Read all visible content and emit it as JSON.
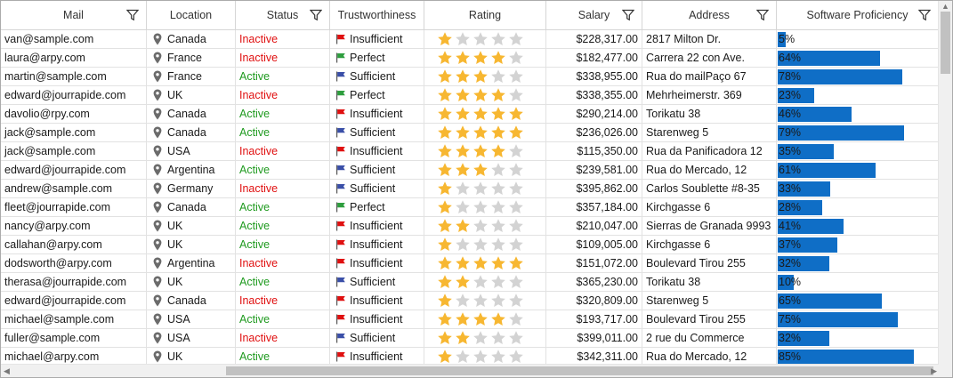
{
  "columns": [
    {
      "key": "mail",
      "label": "Mail",
      "filter": true
    },
    {
      "key": "location",
      "label": "Location",
      "filter": false
    },
    {
      "key": "status",
      "label": "Status",
      "filter": true
    },
    {
      "key": "trust",
      "label": "Trustworthiness",
      "filter": false
    },
    {
      "key": "rating",
      "label": "Rating",
      "filter": false
    },
    {
      "key": "salary",
      "label": "Salary",
      "filter": true
    },
    {
      "key": "address",
      "label": "Address",
      "filter": true
    },
    {
      "key": "proficiency",
      "label": "Software Proficiency",
      "filter": true
    }
  ],
  "colors": {
    "active": "#1f9a1f",
    "inactive": "#e01010",
    "flag_red": "#e01010",
    "flag_green": "#2e9e3e",
    "flag_blue": "#3a4fa8",
    "star_filled": "#f7b731",
    "star_empty": "#d3d3d3",
    "bar": "#0f6ec6"
  },
  "rows": [
    {
      "mail": "van@sample.com",
      "location": "Canada",
      "status": "Inactive",
      "trust": "Insufficient",
      "flag": "red",
      "rating": 1,
      "salary": "$228,317.00",
      "address": "2817 Milton Dr.",
      "prof": 5,
      "prof_label": "5%"
    },
    {
      "mail": "laura@arpy.com",
      "location": "France",
      "status": "Inactive",
      "trust": "Perfect",
      "flag": "green",
      "rating": 4,
      "salary": "$182,477.00",
      "address": "Carrera 22 con Ave.",
      "prof": 64,
      "prof_label": "64%"
    },
    {
      "mail": "martin@sample.com",
      "location": "France",
      "status": "Active",
      "trust": "Sufficient",
      "flag": "blue",
      "rating": 3,
      "salary": "$338,955.00",
      "address": "Rua do mailPaço 67",
      "prof": 78,
      "prof_label": "78%"
    },
    {
      "mail": "edward@jourrapide.com",
      "location": "UK",
      "status": "Inactive",
      "trust": "Perfect",
      "flag": "green",
      "rating": 4,
      "salary": "$338,355.00",
      "address": "Mehrheimerstr. 369",
      "prof": 23,
      "prof_label": "23%"
    },
    {
      "mail": "davolio@rpy.com",
      "location": "Canada",
      "status": "Active",
      "trust": "Insufficient",
      "flag": "red",
      "rating": 5,
      "salary": "$290,214.00",
      "address": "Torikatu 38",
      "prof": 46,
      "prof_label": "46%"
    },
    {
      "mail": "jack@sample.com",
      "location": "Canada",
      "status": "Active",
      "trust": "Sufficient",
      "flag": "blue",
      "rating": 5,
      "salary": "$236,026.00",
      "address": "Starenweg 5",
      "prof": 79,
      "prof_label": "79%"
    },
    {
      "mail": "jack@sample.com",
      "location": "USA",
      "status": "Inactive",
      "trust": "Insufficient",
      "flag": "red",
      "rating": 4,
      "salary": "$115,350.00",
      "address": "Rua da Panificadora 12",
      "prof": 35,
      "prof_label": "35%"
    },
    {
      "mail": "edward@jourrapide.com",
      "location": "Argentina",
      "status": "Active",
      "trust": "Sufficient",
      "flag": "blue",
      "rating": 3,
      "salary": "$239,581.00",
      "address": "Rua do Mercado, 12",
      "prof": 61,
      "prof_label": "61%"
    },
    {
      "mail": "andrew@sample.com",
      "location": "Germany",
      "status": "Inactive",
      "trust": "Sufficient",
      "flag": "blue",
      "rating": 1,
      "salary": "$395,862.00",
      "address": " Carlos Soublette #8-35",
      "prof": 33,
      "prof_label": "33%"
    },
    {
      "mail": "fleet@jourrapide.com",
      "location": "Canada",
      "status": "Active",
      "trust": "Perfect",
      "flag": "green",
      "rating": 1,
      "salary": "$357,184.00",
      "address": "Kirchgasse 6",
      "prof": 28,
      "prof_label": "28%"
    },
    {
      "mail": "nancy@arpy.com",
      "location": "UK",
      "status": "Active",
      "trust": "Insufficient",
      "flag": "red",
      "rating": 2,
      "salary": "$210,047.00",
      "address": "Sierras de Granada 9993",
      "prof": 41,
      "prof_label": "41%"
    },
    {
      "mail": "callahan@arpy.com",
      "location": "UK",
      "status": "Active",
      "trust": "Insufficient",
      "flag": "red",
      "rating": 1,
      "salary": "$109,005.00",
      "address": "Kirchgasse 6",
      "prof": 37,
      "prof_label": "37%"
    },
    {
      "mail": "dodsworth@arpy.com",
      "location": "Argentina",
      "status": "Inactive",
      "trust": "Insufficient",
      "flag": "red",
      "rating": 5,
      "salary": "$151,072.00",
      "address": "Boulevard Tirou 255",
      "prof": 32,
      "prof_label": "32%"
    },
    {
      "mail": "therasa@jourrapide.com",
      "location": "UK",
      "status": "Active",
      "trust": "Sufficient",
      "flag": "blue",
      "rating": 2,
      "salary": "$365,230.00",
      "address": "Torikatu 38",
      "prof": 10,
      "prof_label": "10%"
    },
    {
      "mail": "edward@jourrapide.com",
      "location": "Canada",
      "status": "Inactive",
      "trust": "Insufficient",
      "flag": "red",
      "rating": 1,
      "salary": "$320,809.00",
      "address": "Starenweg 5",
      "prof": 65,
      "prof_label": "65%"
    },
    {
      "mail": "michael@sample.com",
      "location": "USA",
      "status": "Active",
      "trust": "Insufficient",
      "flag": "red",
      "rating": 4,
      "salary": "$193,717.00",
      "address": "Boulevard Tirou 255",
      "prof": 75,
      "prof_label": "75%"
    },
    {
      "mail": "fuller@sample.com",
      "location": "USA",
      "status": "Inactive",
      "trust": "Sufficient",
      "flag": "blue",
      "rating": 2,
      "salary": "$399,011.00",
      "address": "2 rue du Commerce",
      "prof": 32,
      "prof_label": "32%"
    },
    {
      "mail": "michael@arpy.com",
      "location": "UK",
      "status": "Active",
      "trust": "Insufficient",
      "flag": "red",
      "rating": 1,
      "salary": "$342,311.00",
      "address": "Rua do Mercado, 12",
      "prof": 85,
      "prof_label": "85%"
    }
  ]
}
